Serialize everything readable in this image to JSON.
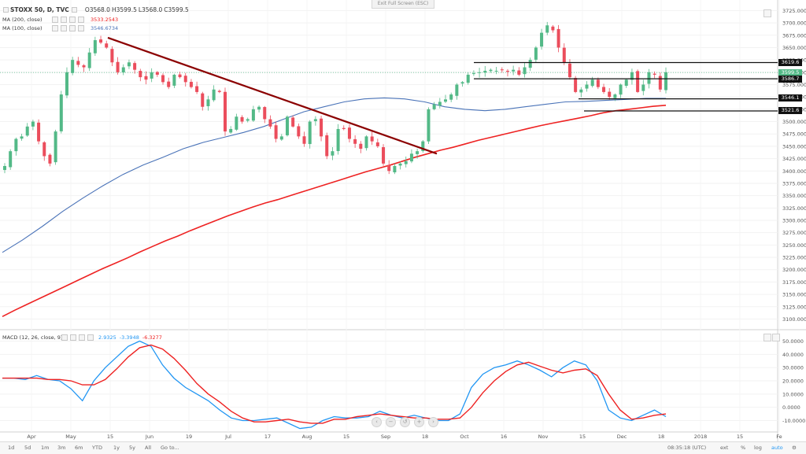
{
  "toolbar": {
    "symbol": "STOXX 50, D, TVC",
    "open": "O3568.0",
    "high": "H3599.5",
    "low": "L3568.0",
    "close": "C3599.5",
    "exit_fullscreen": "Exit Full Screen (ESC)"
  },
  "legend": {
    "ma200_label": "MA (200, close)",
    "ma200_value": "3533.2543",
    "ma100_label": "MA (100, close)",
    "ma100_value": "3546.6734",
    "macd_label": "MACD (12, 26, close, 9)",
    "macd_values": [
      "2.9325",
      "-3.3948",
      "-6.3277"
    ]
  },
  "price_levels": [
    "3619.6",
    "3599.5",
    "3586.7",
    "3546.1",
    "3521.6"
  ],
  "bottom_bar": {
    "ranges": [
      "1d",
      "5d",
      "1m",
      "3m",
      "6m",
      "YTD",
      "1y",
      "5y",
      "All",
      "Go to..."
    ],
    "time": "08:35:18 (UTC)",
    "options": [
      "ext",
      "%",
      "log",
      "auto"
    ]
  },
  "colors": {
    "up": "#53b987",
    "down": "#eb4d5c",
    "ma200": "#ee2222",
    "ma100": "#4a73b8",
    "trendline": "#8b0000",
    "macd": "#2196f3",
    "signal": "#ee2222"
  },
  "chart_data": [
    {
      "type": "candlestick",
      "title": "STOXX 50, D, TVC",
      "x_ticks": [
        "Apr",
        "May",
        "15",
        "Jun",
        "19",
        "Jul",
        "17",
        "Aug",
        "15",
        "Sep",
        "18",
        "Oct",
        "16",
        "Nov",
        "15",
        "Dec",
        "18",
        "2018",
        "15",
        "Fe"
      ],
      "y_ticks": [
        3100,
        3125,
        3150,
        3175,
        3200,
        3225,
        3250,
        3275,
        3300,
        3325,
        3350,
        3375,
        3400,
        3425,
        3450,
        3475,
        3500,
        3525,
        3550,
        3575,
        3600,
        3625,
        3650,
        3675,
        3700,
        3725
      ],
      "ylim": [
        3080,
        3740
      ],
      "closes": [
        3410,
        3440,
        3465,
        3470,
        3490,
        3500,
        3460,
        3430,
        3415,
        3480,
        3555,
        3600,
        3625,
        3615,
        3610,
        3640,
        3665,
        3660,
        3650,
        3620,
        3600,
        3610,
        3620,
        3605,
        3590,
        3585,
        3600,
        3595,
        3580,
        3570,
        3595,
        3590,
        3580,
        3570,
        3560,
        3530,
        3545,
        3565,
        3560,
        3480,
        3485,
        3510,
        3500,
        3505,
        3525,
        3530,
        3505,
        3490,
        3465,
        3470,
        3510,
        3490,
        3470,
        3455,
        3500,
        3505,
        3470,
        3430,
        3440,
        3485,
        3485,
        3465,
        3455,
        3445,
        3470,
        3460,
        3450,
        3415,
        3400,
        3410,
        3415,
        3420,
        3435,
        3440,
        3460,
        3525,
        3535,
        3540,
        3545,
        3555,
        3575,
        3580,
        3595,
        3598,
        3600,
        3603,
        3605,
        3603,
        3604,
        3601,
        3605,
        3595,
        3610,
        3625,
        3650,
        3680,
        3695,
        3685,
        3650,
        3620,
        3590,
        3560,
        3565,
        3575,
        3585,
        3570,
        3560,
        3550,
        3555,
        3575,
        3585,
        3600,
        3560,
        3575,
        3600,
        3595,
        3565,
        3600
      ],
      "ma200": [
        3105,
        3118,
        3130,
        3142,
        3154,
        3166,
        3178,
        3190,
        3202,
        3213,
        3224,
        3236,
        3247,
        3258,
        3268,
        3279,
        3289,
        3299,
        3309,
        3318,
        3327,
        3335,
        3342,
        3350,
        3358,
        3366,
        3374,
        3382,
        3390,
        3398,
        3405,
        3412,
        3420,
        3428,
        3435,
        3442,
        3448,
        3455,
        3462,
        3468,
        3474,
        3480,
        3486,
        3492,
        3497,
        3502,
        3507,
        3512,
        3518,
        3522,
        3525,
        3528,
        3531,
        3533
      ],
      "ma100": [
        3235,
        3260,
        3288,
        3318,
        3345,
        3370,
        3393,
        3412,
        3428,
        3445,
        3458,
        3468,
        3478,
        3490,
        3505,
        3520,
        3530,
        3540,
        3546,
        3548,
        3546,
        3540,
        3530,
        3525,
        3522,
        3525,
        3530,
        3535,
        3540,
        3541,
        3543,
        3545,
        3547,
        3547
      ],
      "trendline": {
        "from": 3670,
        "to": 3435
      },
      "series": [
        {
          "name": "MA (200, close)",
          "last": 3533.2543
        },
        {
          "name": "MA (100, close)",
          "last": 3546.6734
        }
      ]
    },
    {
      "type": "line",
      "title": "MACD (12, 26, close, 9)",
      "y_ticks": [
        -10,
        0,
        10,
        20,
        30,
        40,
        50
      ],
      "ylim": [
        -18,
        58
      ],
      "series": [
        {
          "name": "MACD",
          "values": [
            22,
            22,
            21,
            24,
            21,
            20,
            14,
            5,
            20,
            30,
            38,
            46,
            50,
            46,
            32,
            22,
            15,
            10,
            5,
            -2,
            -8,
            -10,
            -10,
            -9,
            -8,
            -12,
            -16,
            -15,
            -10,
            -7,
            -8,
            -8,
            -7,
            -3,
            -6,
            -8,
            -6,
            -8,
            -10,
            -10,
            -5,
            15,
            25,
            30,
            32,
            35,
            32,
            28,
            23,
            30,
            35,
            32,
            20,
            -2,
            -8,
            -10,
            -6,
            -2,
            -7
          ]
        },
        {
          "name": "Signal",
          "values": [
            22,
            22,
            22,
            22,
            21,
            21,
            20,
            17,
            17,
            21,
            29,
            38,
            45,
            47,
            44,
            37,
            28,
            18,
            10,
            4,
            -3,
            -8,
            -11,
            -11,
            -10,
            -9,
            -11,
            -12,
            -12,
            -9,
            -9,
            -7,
            -6,
            -5,
            -6,
            -7,
            -8,
            -8,
            -9,
            -9,
            -8,
            0,
            11,
            20,
            27,
            32,
            34,
            31,
            28,
            26,
            28,
            29,
            24,
            10,
            -2,
            -9,
            -8,
            -6,
            -5
          ]
        }
      ]
    }
  ]
}
